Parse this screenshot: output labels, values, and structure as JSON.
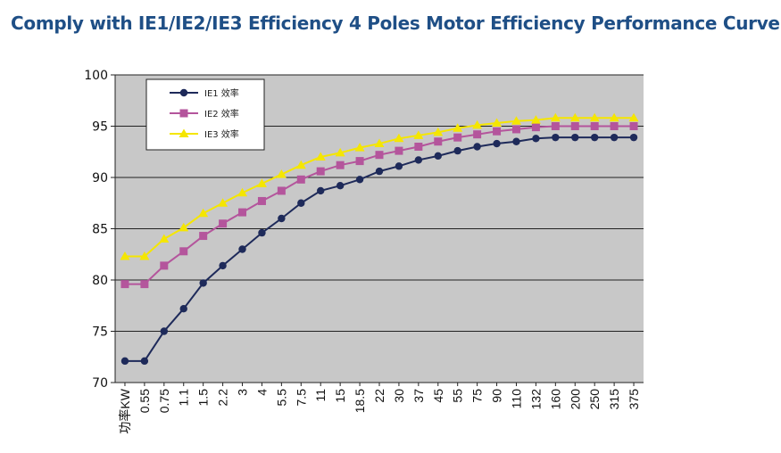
{
  "title": "Comply with IE1/IE2/IE3 Efficiency 4 Poles Motor Efficiency Performance Curve",
  "chart_data": {
    "type": "line",
    "title": "Comply with IE1/IE2/IE3 Efficiency 4 Poles Motor Efficiency Performance Curve",
    "xlabel": "",
    "ylabel": "",
    "ylim": [
      70,
      100
    ],
    "yticks": [
      "70",
      "75",
      "80",
      "85",
      "90",
      "95",
      "100"
    ],
    "grid": true,
    "legend": "top-left",
    "background": "#c8c8c8",
    "categories": [
      "功率KW",
      "0.55",
      "0.75",
      "1.1",
      "1.5",
      "2.2",
      "3",
      "4",
      "5.5",
      "7.5",
      "11",
      "15",
      "18.5",
      "22",
      "30",
      "37",
      "45",
      "55",
      "75",
      "90",
      "110",
      "132",
      "160",
      "200",
      "250",
      "315",
      "375"
    ],
    "series": [
      {
        "name": "IE1 效率",
        "color": "#1e2a5a",
        "marker": "circle",
        "values": [
          72.1,
          72.1,
          75.0,
          77.2,
          79.7,
          81.4,
          83.0,
          84.6,
          86.0,
          87.5,
          88.7,
          89.2,
          89.8,
          90.6,
          91.1,
          91.7,
          92.1,
          92.6,
          93.0,
          93.3,
          93.5,
          93.8,
          93.9,
          93.9,
          93.9,
          93.9,
          93.9
        ]
      },
      {
        "name": "IE2 效率",
        "color": "#b4559c",
        "marker": "square",
        "values": [
          79.6,
          79.6,
          81.4,
          82.8,
          84.3,
          85.5,
          86.6,
          87.7,
          88.7,
          89.8,
          90.6,
          91.2,
          91.6,
          92.2,
          92.6,
          93.0,
          93.5,
          93.9,
          94.2,
          94.5,
          94.7,
          94.9,
          95.0,
          95.0,
          95.0,
          95.0,
          95.0
        ]
      },
      {
        "name": "IE3 效率",
        "color": "#f5e600",
        "marker": "triangle",
        "values": [
          82.3,
          82.3,
          84.0,
          85.1,
          86.5,
          87.5,
          88.5,
          89.4,
          90.3,
          91.2,
          92.0,
          92.4,
          92.9,
          93.3,
          93.8,
          94.1,
          94.4,
          94.8,
          95.1,
          95.3,
          95.5,
          95.6,
          95.8,
          95.8,
          95.8,
          95.8,
          95.8
        ]
      }
    ]
  }
}
